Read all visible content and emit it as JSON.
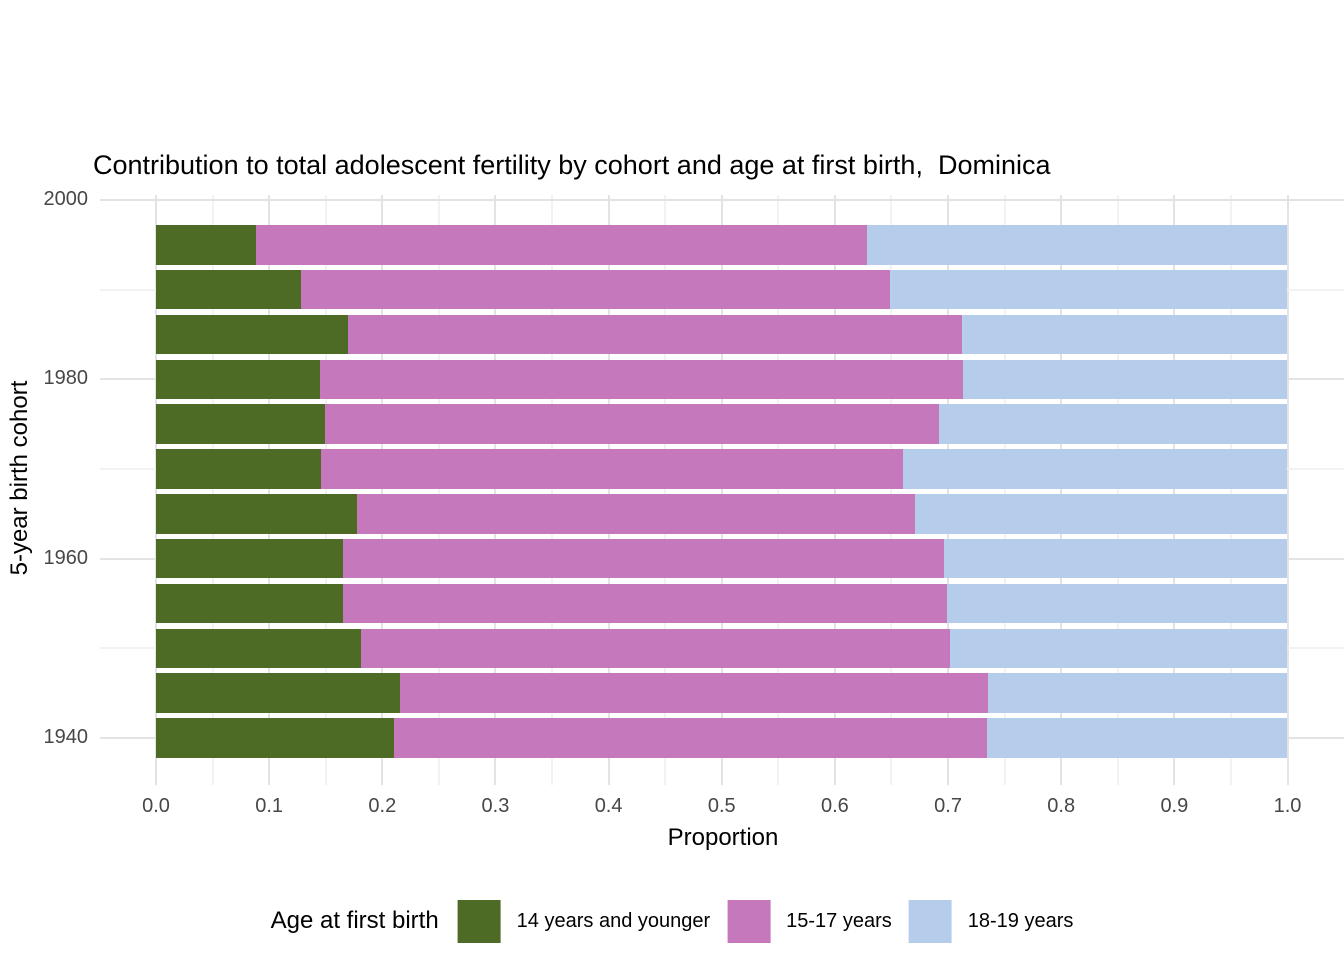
{
  "title": "Contribution to total adolescent fertility by cohort and age at first birth,  Dominica",
  "axes": {
    "x": {
      "title": "Proportion",
      "ticks": [
        "0.0",
        "0.1",
        "0.2",
        "0.3",
        "0.4",
        "0.5",
        "0.6",
        "0.7",
        "0.8",
        "0.9",
        "1.0"
      ]
    },
    "y": {
      "title": "5-year birth cohort",
      "ticks": [
        "2000",
        "1980",
        "1960",
        "1940"
      ]
    }
  },
  "legend": {
    "title": "Age at first birth",
    "items": [
      {
        "label": "14 years and younger",
        "color": "#4d6b24"
      },
      {
        "label": "15-17 years",
        "color": "#c678bd"
      },
      {
        "label": "18-19 years",
        "color": "#b5cdeb"
      }
    ]
  },
  "chart_data": {
    "type": "bar",
    "orientation": "horizontal",
    "stacked": true,
    "title": "Contribution to total adolescent fertility by cohort and age at first birth,  Dominica",
    "xlabel": "Proportion",
    "ylabel": "5-year birth cohort",
    "xlim": [
      0,
      1
    ],
    "grid": true,
    "legend_position": "bottom",
    "categories": [
      1995,
      1990,
      1985,
      1980,
      1975,
      1970,
      1965,
      1960,
      1955,
      1950,
      1945,
      1940
    ],
    "series": [
      {
        "name": "14 years and younger",
        "color": "#4d6b24",
        "values": [
          0.088,
          0.128,
          0.17,
          0.145,
          0.149,
          0.146,
          0.178,
          0.165,
          0.165,
          0.181,
          0.216,
          0.21
        ]
      },
      {
        "name": "15-17 years",
        "color": "#c678bd",
        "values": [
          0.54,
          0.521,
          0.542,
          0.568,
          0.543,
          0.514,
          0.493,
          0.531,
          0.534,
          0.521,
          0.519,
          0.524
        ]
      },
      {
        "name": "18-19 years",
        "color": "#b5cdeb",
        "values": [
          0.372,
          0.351,
          0.288,
          0.287,
          0.308,
          0.34,
          0.329,
          0.304,
          0.301,
          0.298,
          0.265,
          0.266
        ]
      }
    ]
  }
}
